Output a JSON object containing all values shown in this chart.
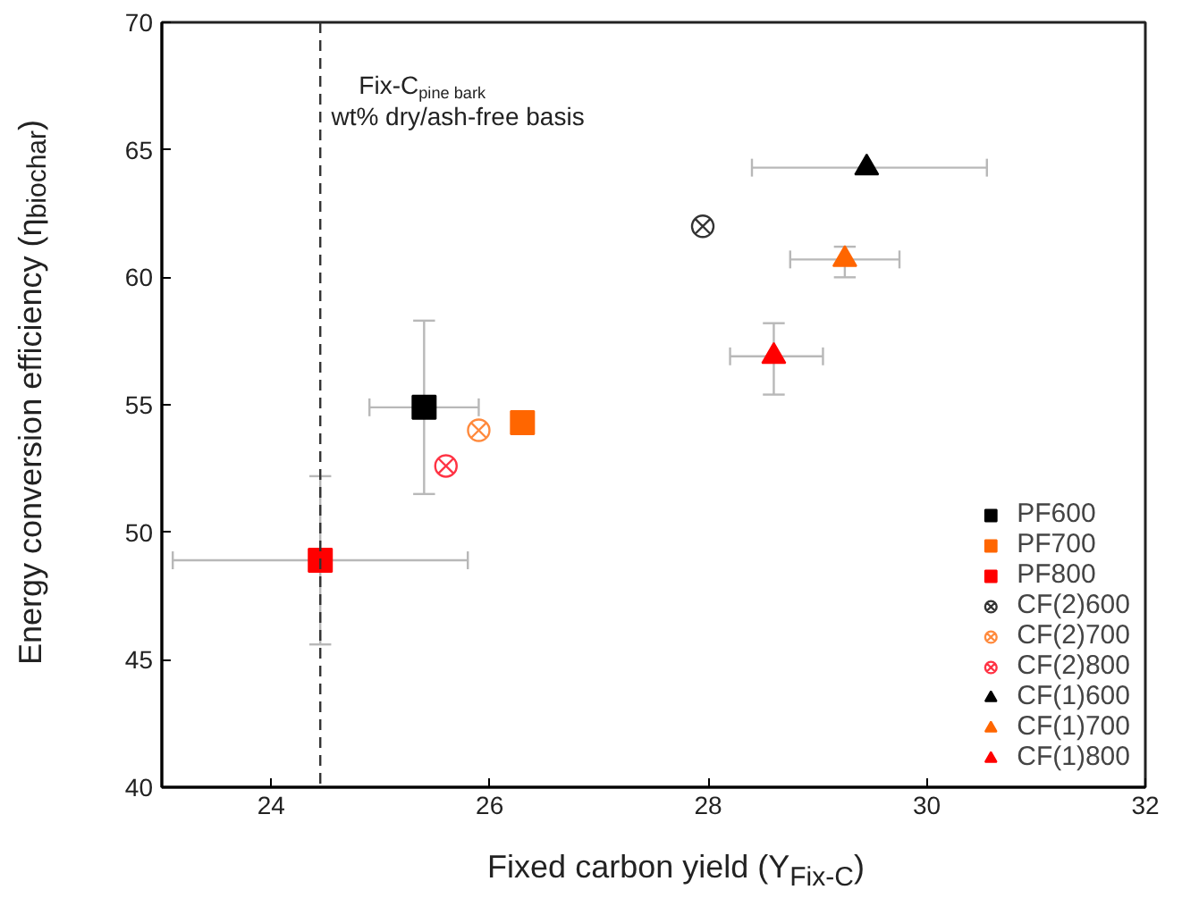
{
  "chart_data": {
    "type": "scatter",
    "xlabel": "Fixed carbon yield (Y$_{Fix-C}$)",
    "ylabel": "Energy conversion efficiency (η$_{biochar}$)",
    "xlim": [
      23,
      32
    ],
    "xticks": [
      24,
      26,
      28,
      30,
      32
    ],
    "ylim": [
      40,
      70
    ],
    "yticks": [
      40,
      45,
      50,
      55,
      60,
      65,
      70
    ],
    "grid": false,
    "legend": "bottom right",
    "ref_lines": [
      {
        "axis": "x",
        "value": 24.45,
        "line_style": "dashed",
        "color": "#333333",
        "label": "Fix-C$_{pine bark}$\nwt% dry/ash-free basis"
      }
    ],
    "series": [
      {
        "name": "PF600",
        "color": "#000000",
        "marker": "square",
        "x": [
          25.4
        ],
        "values": [
          54.9
        ],
        "errors": [
          [
            51.5,
            58.3
          ]
        ],
        "xerrors": [
          [
            24.9,
            25.9
          ]
        ]
      },
      {
        "name": "PF700",
        "color": "#ff6600",
        "marker": "square",
        "x": [
          26.3
        ],
        "values": [
          54.3
        ]
      },
      {
        "name": "PF800",
        "color": "#ff0000",
        "marker": "square",
        "x": [
          24.45
        ],
        "values": [
          48.9
        ],
        "errors": [
          [
            45.6,
            52.2
          ]
        ],
        "xerrors": [
          [
            23.1,
            25.8
          ]
        ]
      },
      {
        "name": "CF(2)600",
        "color": "#333333",
        "marker": "cross",
        "x": [
          27.95
        ],
        "values": [
          62.0
        ]
      },
      {
        "name": "CF(2)700",
        "color": "#ff8a3d",
        "marker": "cross",
        "x": [
          25.9
        ],
        "values": [
          54.0
        ]
      },
      {
        "name": "CF(2)800",
        "color": "#ff3344",
        "marker": "cross",
        "x": [
          25.6
        ],
        "values": [
          52.6
        ]
      },
      {
        "name": "CF(1)600",
        "color": "#000000",
        "marker": "triangle",
        "x": [
          29.45
        ],
        "values": [
          64.3
        ],
        "xerrors": [
          [
            28.4,
            30.55
          ]
        ]
      },
      {
        "name": "CF(1)700",
        "color": "#ff6600",
        "marker": "triangle",
        "x": [
          29.25
        ],
        "values": [
          60.7
        ],
        "errors": [
          [
            60.0,
            61.2
          ]
        ],
        "xerrors": [
          [
            28.75,
            29.75
          ]
        ]
      },
      {
        "name": "CF(1)800",
        "color": "#ff0000",
        "marker": "triangle",
        "x": [
          28.6
        ],
        "values": [
          56.9
        ],
        "errors": [
          [
            55.4,
            58.2
          ]
        ],
        "xerrors": [
          [
            28.2,
            29.05
          ]
        ]
      }
    ]
  }
}
